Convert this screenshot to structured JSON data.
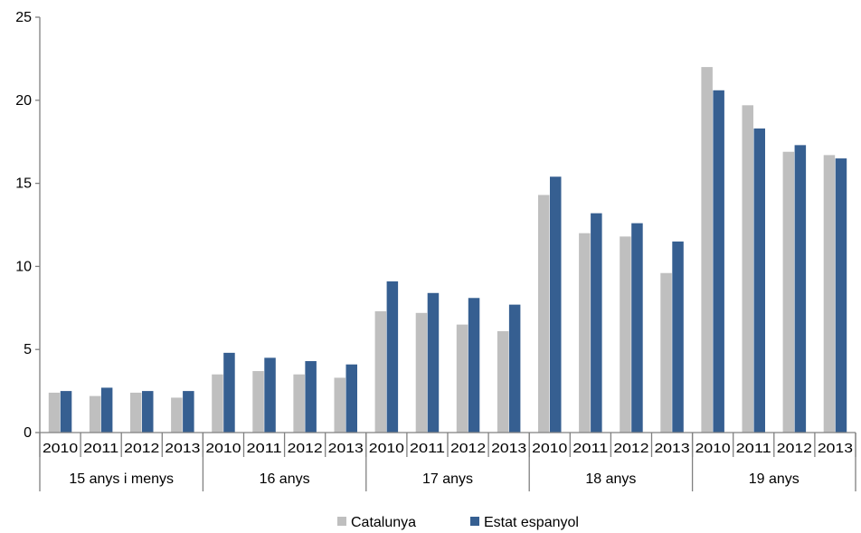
{
  "chart_data": {
    "type": "bar",
    "groups": [
      {
        "label": "15 anys i menys",
        "years": [
          "2010",
          "2011",
          "2012",
          "2013"
        ]
      },
      {
        "label": "16 anys",
        "years": [
          "2010",
          "2011",
          "2012",
          "2013"
        ]
      },
      {
        "label": "17 anys",
        "years": [
          "2010",
          "2011",
          "2012",
          "2013"
        ]
      },
      {
        "label": "18 anys",
        "years": [
          "2010",
          "2011",
          "2012",
          "2013"
        ]
      },
      {
        "label": "19 anys",
        "years": [
          "2010",
          "2011",
          "2012",
          "2013"
        ]
      }
    ],
    "series": [
      {
        "name": "Catalunya",
        "color": "#bfbfbf",
        "values": [
          2.4,
          2.2,
          2.4,
          2.1,
          3.5,
          3.7,
          3.5,
          3.3,
          7.3,
          7.2,
          6.5,
          6.1,
          14.3,
          12.0,
          11.8,
          9.6,
          22.0,
          19.7,
          16.9,
          16.7
        ]
      },
      {
        "name": "Estat espanyol",
        "color": "#365f91",
        "values": [
          2.5,
          2.7,
          2.5,
          2.5,
          4.8,
          4.5,
          4.3,
          4.1,
          9.1,
          8.4,
          8.1,
          7.7,
          15.4,
          13.2,
          12.6,
          11.5,
          20.6,
          18.3,
          17.3,
          16.5
        ]
      }
    ],
    "ylim": [
      0,
      25
    ],
    "yticks": [
      "0",
      "5",
      "10",
      "15",
      "20",
      "25"
    ],
    "grid": false,
    "legend_position": "bottom"
  }
}
